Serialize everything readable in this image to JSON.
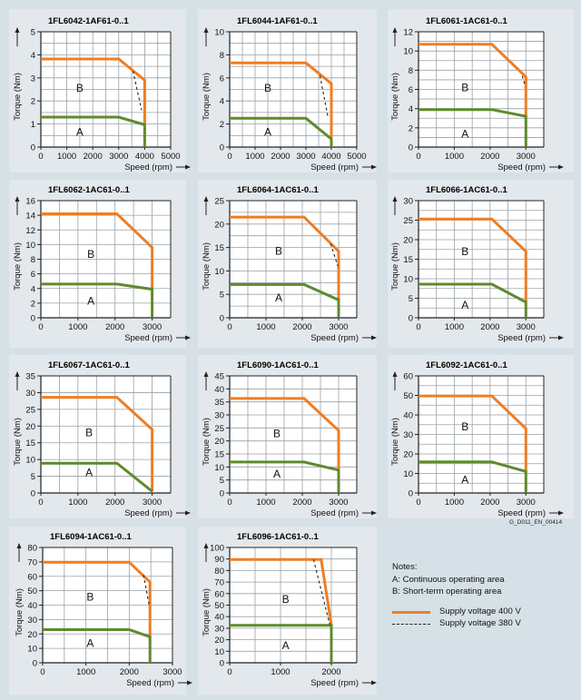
{
  "figure_code": "G_D011_EN_00414",
  "notes": {
    "heading": "Notes:",
    "items": [
      "A: Continuous operating area",
      "B: Short-term operating area"
    ],
    "legend": [
      {
        "label": "Supply voltage 400 V",
        "style": "solid",
        "color": "#f07d22"
      },
      {
        "label": "Supply voltage 380 V",
        "style": "dashed",
        "color": "#222222"
      }
    ]
  },
  "colors": {
    "short_term": "#f07d22",
    "continuous": "#5f8a2e",
    "dashed_380v": "#222222",
    "grid": "#9aa1a6",
    "plot_bg": "#ffffff",
    "panel_bg": "#e3e8ec",
    "page_bg": "#d6e0e7"
  },
  "chart_data": [
    {
      "type": "line",
      "title": "1FL6042-1AF61-0..1",
      "xlabel": "Speed (rpm)",
      "ylabel": "Torque (Nm)",
      "xlim": [
        0,
        5000
      ],
      "ylim": [
        0,
        5
      ],
      "xticks": [
        0,
        1000,
        2000,
        3000,
        4000,
        5000
      ],
      "yticks": [
        0,
        1,
        2,
        3,
        4,
        5
      ],
      "grid": true,
      "region_labels": {
        "A": [
          1500,
          0.5
        ],
        "B": [
          1500,
          2.4
        ]
      },
      "series": [
        {
          "name": "B: Short-term (400 V)",
          "x": [
            0,
            3000,
            4000,
            4000
          ],
          "y": [
            3.82,
            3.82,
            2.9,
            1.0
          ]
        },
        {
          "name": "A: Continuous",
          "x": [
            0,
            3000,
            4000,
            4000
          ],
          "y": [
            1.3,
            1.3,
            0.97,
            0
          ]
        },
        {
          "name": "380 V",
          "x": [
            3550,
            3880
          ],
          "y": [
            3.3,
            1.6
          ]
        }
      ]
    },
    {
      "type": "line",
      "title": "1FL6044-1AF61-0..1",
      "xlabel": "Speed (rpm)",
      "ylabel": "Torque (Nm)",
      "xlim": [
        0,
        5000
      ],
      "ylim": [
        0,
        10
      ],
      "xticks": [
        0,
        1000,
        2000,
        3000,
        4000,
        5000
      ],
      "yticks": [
        0,
        2,
        4,
        6,
        8,
        10
      ],
      "grid": true,
      "region_labels": {
        "A": [
          1500,
          1.0
        ],
        "B": [
          1500,
          4.8
        ]
      },
      "series": [
        {
          "name": "B: Short-term (400 V)",
          "x": [
            0,
            3000,
            4000,
            4000
          ],
          "y": [
            7.3,
            7.3,
            5.5,
            0.8
          ]
        },
        {
          "name": "A: Continuous",
          "x": [
            0,
            3000,
            4000,
            4000
          ],
          "y": [
            2.5,
            2.5,
            0.7,
            0
          ]
        },
        {
          "name": "380 V",
          "x": [
            3550,
            3880
          ],
          "y": [
            6.2,
            2.5
          ]
        }
      ]
    },
    {
      "type": "line",
      "title": "1FL6061-1AC61-0..1",
      "xlabel": "Speed (rpm)",
      "ylabel": "Torque (Nm)",
      "xlim": [
        0,
        3500
      ],
      "ylim": [
        0,
        12
      ],
      "xticks": [
        0,
        1000,
        2000,
        3000
      ],
      "yticks": [
        0,
        2,
        4,
        6,
        8,
        10,
        12
      ],
      "grid": true,
      "region_labels": {
        "A": [
          1300,
          1.0
        ],
        "B": [
          1300,
          5.8
        ]
      },
      "series": [
        {
          "name": "B: Short-term (400 V)",
          "x": [
            0,
            2050,
            3000,
            3000
          ],
          "y": [
            10.7,
            10.7,
            7.3,
            3.3
          ]
        },
        {
          "name": "A: Continuous",
          "x": [
            0,
            2050,
            3000,
            3000
          ],
          "y": [
            3.9,
            3.9,
            3.2,
            0
          ]
        },
        {
          "name": "380 V",
          "x": [
            2900,
            2980
          ],
          "y": [
            7.4,
            6.4
          ]
        }
      ]
    },
    {
      "type": "line",
      "title": "1FL6062-1AC61-0..1",
      "xlabel": "Speed (rpm)",
      "ylabel": "Torque (Nm)",
      "xlim": [
        0,
        3500
      ],
      "ylim": [
        0,
        16
      ],
      "xticks": [
        0,
        1000,
        2000,
        3000
      ],
      "yticks": [
        0,
        2,
        4,
        6,
        8,
        10,
        12,
        14,
        16
      ],
      "grid": true,
      "region_labels": {
        "A": [
          1350,
          1.8
        ],
        "B": [
          1350,
          8.2
        ]
      },
      "series": [
        {
          "name": "B: Short-term (400 V)",
          "x": [
            0,
            2050,
            3000,
            3000
          ],
          "y": [
            14.2,
            14.2,
            9.6,
            3.9
          ]
        },
        {
          "name": "A: Continuous",
          "x": [
            0,
            2050,
            3000,
            3000
          ],
          "y": [
            4.6,
            4.6,
            3.9,
            0
          ]
        }
      ]
    },
    {
      "type": "line",
      "title": "1FL6064-1AC61-0..1",
      "xlabel": "Speed (rpm)",
      "ylabel": "Torque (Nm)",
      "xlim": [
        0,
        3500
      ],
      "ylim": [
        0,
        25
      ],
      "xticks": [
        0,
        1000,
        2000,
        3000
      ],
      "yticks": [
        0,
        5,
        10,
        15,
        20,
        25
      ],
      "grid": true,
      "region_labels": {
        "A": [
          1350,
          3.5
        ],
        "B": [
          1350,
          13.5
        ]
      },
      "series": [
        {
          "name": "B: Short-term (400 V)",
          "x": [
            0,
            2050,
            3000,
            3000
          ],
          "y": [
            21.5,
            21.5,
            14.2,
            3.8
          ]
        },
        {
          "name": "A: Continuous",
          "x": [
            0,
            2050,
            3000,
            3000
          ],
          "y": [
            7.1,
            7.1,
            3.8,
            0
          ]
        },
        {
          "name": "380 V",
          "x": [
            2780,
            2980
          ],
          "y": [
            15.8,
            11.0
          ]
        }
      ]
    },
    {
      "type": "line",
      "title": "1FL6066-1AC61-0..1",
      "xlabel": "Speed (rpm)",
      "ylabel": "Torque (Nm)",
      "xlim": [
        0,
        3500
      ],
      "ylim": [
        0,
        30
      ],
      "xticks": [
        0,
        1000,
        2000,
        3000
      ],
      "yticks": [
        0,
        5,
        10,
        15,
        20,
        25,
        30
      ],
      "grid": true,
      "region_labels": {
        "A": [
          1300,
          2.3
        ],
        "B": [
          1300,
          16.0
        ]
      },
      "series": [
        {
          "name": "B: Short-term (400 V)",
          "x": [
            0,
            2050,
            3000,
            3000
          ],
          "y": [
            25.3,
            25.3,
            17.0,
            4.0
          ]
        },
        {
          "name": "A: Continuous",
          "x": [
            0,
            2050,
            3000,
            3000
          ],
          "y": [
            8.6,
            8.6,
            4.0,
            0
          ]
        }
      ]
    },
    {
      "type": "line",
      "title": "1FL6067-1AC61-0..1",
      "xlabel": "Speed (rpm)",
      "ylabel": "Torque (Nm)",
      "xlim": [
        0,
        3500
      ],
      "ylim": [
        0,
        35
      ],
      "xticks": [
        0,
        1000,
        2000,
        3000
      ],
      "yticks": [
        0,
        5,
        10,
        15,
        20,
        25,
        30,
        35
      ],
      "grid": true,
      "region_labels": {
        "A": [
          1300,
          5.0
        ],
        "B": [
          1300,
          17.0
        ]
      },
      "series": [
        {
          "name": "B: Short-term (400 V)",
          "x": [
            0,
            2050,
            3000,
            3000
          ],
          "y": [
            28.6,
            28.6,
            19.0,
            0.5
          ]
        },
        {
          "name": "A: Continuous",
          "x": [
            0,
            2050,
            3000
          ],
          "y": [
            8.9,
            8.9,
            0.5
          ]
        }
      ]
    },
    {
      "type": "line",
      "title": "1FL6090-1AC61-0..1",
      "xlabel": "Speed (rpm)",
      "ylabel": "Torque (Nm)",
      "xlim": [
        0,
        3500
      ],
      "ylim": [
        0,
        45
      ],
      "xticks": [
        0,
        1000,
        2000,
        3000
      ],
      "yticks": [
        0,
        5,
        10,
        15,
        20,
        25,
        30,
        35,
        40,
        45
      ],
      "grid": true,
      "region_labels": {
        "A": [
          1300,
          6.0
        ],
        "B": [
          1300,
          21.5
        ]
      },
      "series": [
        {
          "name": "B: Short-term (400 V)",
          "x": [
            0,
            2050,
            3000,
            3000
          ],
          "y": [
            36.3,
            36.3,
            24.0,
            8.8
          ]
        },
        {
          "name": "A: Continuous",
          "x": [
            0,
            2050,
            3000,
            3000
          ],
          "y": [
            11.9,
            11.9,
            8.8,
            0
          ]
        }
      ]
    },
    {
      "type": "line",
      "title": "1FL6092-1AC61-0..1",
      "xlabel": "Speed (rpm)",
      "ylabel": "Torque (Nm)",
      "xlim": [
        0,
        3500
      ],
      "ylim": [
        0,
        60
      ],
      "xticks": [
        0,
        1000,
        2000,
        3000
      ],
      "yticks": [
        0,
        10,
        20,
        30,
        40,
        50,
        60
      ],
      "grid": true,
      "region_labels": {
        "A": [
          1300,
          5.0
        ],
        "B": [
          1300,
          32.0
        ]
      },
      "series": [
        {
          "name": "B: Short-term (400 V)",
          "x": [
            0,
            2050,
            3000,
            3000
          ],
          "y": [
            49.7,
            49.7,
            33.0,
            11.0
          ]
        },
        {
          "name": "A: Continuous",
          "x": [
            0,
            2050,
            3000,
            3000
          ],
          "y": [
            15.9,
            15.9,
            11.0,
            0
          ]
        }
      ]
    },
    {
      "type": "line",
      "title": "1FL6094-1AC61-0..1",
      "xlabel": "Speed (rpm)",
      "ylabel": "Torque (Nm)",
      "xlim": [
        0,
        3000
      ],
      "ylim": [
        0,
        80
      ],
      "xticks": [
        0,
        1000,
        2000,
        3000
      ],
      "yticks": [
        0,
        10,
        20,
        30,
        40,
        50,
        60,
        70,
        80
      ],
      "grid": true,
      "region_labels": {
        "A": [
          1100,
          11.0
        ],
        "B": [
          1100,
          43.0
        ]
      },
      "series": [
        {
          "name": "B: Short-term (400 V)",
          "x": [
            0,
            2000,
            2480,
            2480
          ],
          "y": [
            69.8,
            69.8,
            56.0,
            18.0
          ]
        },
        {
          "name": "A: Continuous",
          "x": [
            0,
            2000,
            2480,
            2480
          ],
          "y": [
            23.0,
            23.0,
            18.0,
            0
          ]
        },
        {
          "name": "380 V",
          "x": [
            2330,
            2460
          ],
          "y": [
            61.0,
            40.0
          ]
        }
      ]
    },
    {
      "type": "line",
      "title": "1FL6096-1AC61-0..1",
      "xlabel": "Speed (rpm)",
      "ylabel": "Torque (Nm)",
      "xlim": [
        0,
        2500
      ],
      "ylim": [
        0,
        100
      ],
      "xticks": [
        0,
        1000,
        2000
      ],
      "yticks": [
        0,
        10,
        20,
        30,
        40,
        50,
        60,
        70,
        80,
        90,
        100
      ],
      "grid": true,
      "region_labels": {
        "A": [
          1100,
          12.0
        ],
        "B": [
          1100,
          52.0
        ]
      },
      "series": [
        {
          "name": "B: Short-term (400 V)",
          "x": [
            0,
            1800,
            2000,
            2000
          ],
          "y": [
            89.5,
            89.5,
            33.0,
            32.5
          ]
        },
        {
          "name": "A: Continuous",
          "x": [
            0,
            2000,
            2000
          ],
          "y": [
            32.5,
            32.5,
            0
          ]
        },
        {
          "name": "380 V",
          "x": [
            1650,
            1970
          ],
          "y": [
            89.5,
            33.0
          ]
        }
      ]
    }
  ]
}
